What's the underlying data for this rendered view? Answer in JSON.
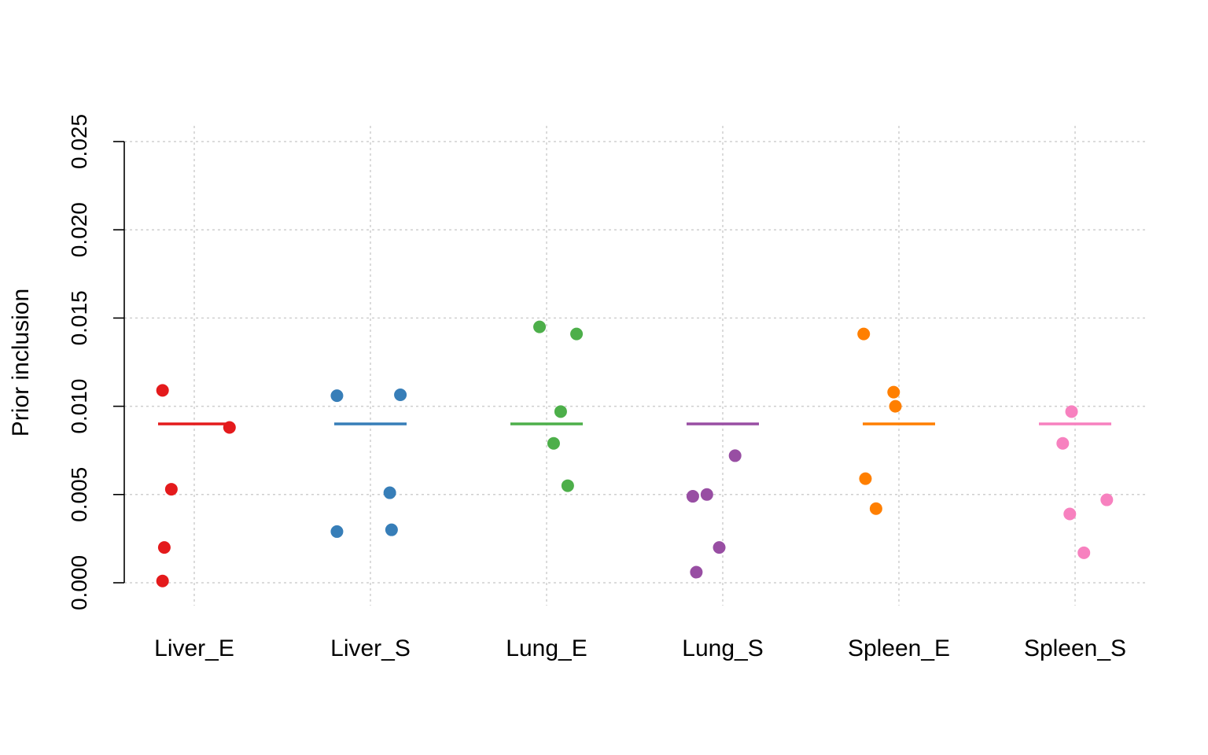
{
  "chart_data": {
    "type": "scatter",
    "title": "",
    "xlabel": "",
    "ylabel": "Prior inclusion",
    "ylim": [
      0,
      0.025
    ],
    "yticks": [
      "0.000",
      "0.005",
      "0.010",
      "0.015",
      "0.020",
      "0.025"
    ],
    "grid": true,
    "categories": [
      "Liver_E",
      "Liver_S",
      "Lung_E",
      "Lung_S",
      "Spleen_E",
      "Spleen_S"
    ],
    "reference_value": 0.009,
    "series": [
      {
        "category": "Liver_E",
        "color": "#e41a1c",
        "points": [
          {
            "jitter": -0.18,
            "y": 0.0109
          },
          {
            "jitter": 0.2,
            "y": 0.0088
          },
          {
            "jitter": -0.13,
            "y": 0.0053
          },
          {
            "jitter": -0.17,
            "y": 0.002
          },
          {
            "jitter": -0.18,
            "y": 0.0001
          }
        ]
      },
      {
        "category": "Liver_S",
        "color": "#377eb8",
        "points": [
          {
            "jitter": -0.19,
            "y": 0.0106
          },
          {
            "jitter": 0.17,
            "y": 0.01065
          },
          {
            "jitter": 0.11,
            "y": 0.0051
          },
          {
            "jitter": 0.12,
            "y": 0.003
          },
          {
            "jitter": -0.19,
            "y": 0.0029
          }
        ]
      },
      {
        "category": "Lung_E",
        "color": "#4daf4a",
        "points": [
          {
            "jitter": -0.04,
            "y": 0.0145
          },
          {
            "jitter": 0.17,
            "y": 0.0141
          },
          {
            "jitter": 0.08,
            "y": 0.0097
          },
          {
            "jitter": 0.04,
            "y": 0.0079
          },
          {
            "jitter": 0.12,
            "y": 0.0055
          }
        ]
      },
      {
        "category": "Lung_S",
        "color": "#984ea3",
        "points": [
          {
            "jitter": 0.07,
            "y": 0.0072
          },
          {
            "jitter": -0.17,
            "y": 0.0049
          },
          {
            "jitter": -0.09,
            "y": 0.005
          },
          {
            "jitter": -0.02,
            "y": 0.002
          },
          {
            "jitter": -0.15,
            "y": 0.0006
          }
        ]
      },
      {
        "category": "Spleen_E",
        "color": "#ff7f00",
        "points": [
          {
            "jitter": -0.2,
            "y": 0.0141
          },
          {
            "jitter": -0.03,
            "y": 0.0108
          },
          {
            "jitter": -0.02,
            "y": 0.01
          },
          {
            "jitter": -0.19,
            "y": 0.0059
          },
          {
            "jitter": -0.13,
            "y": 0.0042
          }
        ]
      },
      {
        "category": "Spleen_S",
        "color": "#f781bf",
        "points": [
          {
            "jitter": -0.02,
            "y": 0.0097
          },
          {
            "jitter": -0.07,
            "y": 0.0079
          },
          {
            "jitter": 0.18,
            "y": 0.0047
          },
          {
            "jitter": -0.03,
            "y": 0.0039
          },
          {
            "jitter": 0.05,
            "y": 0.0017
          }
        ]
      }
    ]
  }
}
